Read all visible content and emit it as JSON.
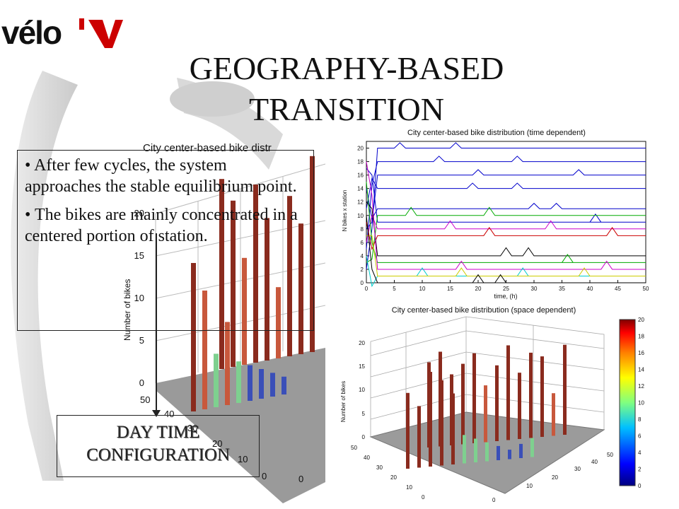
{
  "slide": {
    "title_line1": "GEOGRAPHY-BASED",
    "title_line2": "TRANSITION",
    "logo_text": "vélo'v",
    "bullets": [
      "• After few cycles, the system approaches the stable equilibrium point.",
      "• The bikes are mainly concentrated in a centered portion of station."
    ],
    "day_box_line1": "DAY TIME",
    "day_box_line2": "CONFIGURATION"
  },
  "chart_data": [
    {
      "type": "bar",
      "id": "big-3d",
      "title": "City center-based bike distr",
      "zlabel": "Number of bikes",
      "zticks": [
        "0",
        "5",
        "10",
        "15",
        "20"
      ],
      "xticks": [
        "50",
        "40",
        "30",
        "20",
        "10",
        "0"
      ],
      "yticks": [
        "0"
      ],
      "bar_heights": [
        32,
        28,
        18,
        30,
        24,
        12,
        27,
        22,
        33,
        25,
        20,
        9,
        14,
        7,
        6,
        5,
        4,
        3
      ]
    },
    {
      "type": "line",
      "id": "time-dependent",
      "title": "City center-based bike distribution (time dependent)",
      "xlabel": "time, (h)",
      "ylabel": "N bikes x station",
      "xlim": [
        0,
        50
      ],
      "ylim": [
        0,
        21
      ],
      "xticks": [
        0,
        5,
        10,
        15,
        20,
        25,
        30,
        35,
        40,
        45,
        50
      ],
      "yticks": [
        0,
        2,
        4,
        6,
        8,
        10,
        12,
        14,
        16,
        18,
        20
      ],
      "series": [
        {
          "color": "#0000cc",
          "level": 20
        },
        {
          "color": "#0000cc",
          "level": 18
        },
        {
          "color": "#0000cc",
          "level": 16
        },
        {
          "color": "#0000cc",
          "level": 14
        },
        {
          "color": "#0000cc",
          "level": 11
        },
        {
          "color": "#0000cc",
          "level": 9
        },
        {
          "color": "#00aa00",
          "level": 10
        },
        {
          "color": "#cc00cc",
          "level": 8
        },
        {
          "color": "#cc0000",
          "level": 7
        },
        {
          "color": "#000000",
          "level": 4
        },
        {
          "color": "#00aa00",
          "level": 3
        },
        {
          "color": "#cc00cc",
          "level": 2
        },
        {
          "color": "#00cccc",
          "level": 1
        },
        {
          "color": "#cccc00",
          "level": 1
        },
        {
          "color": "#000000",
          "level": 0
        }
      ]
    },
    {
      "type": "heatmap",
      "id": "space-dependent",
      "title": "City center-based bike distribution (space dependent)",
      "zlabel": "Number of bikes",
      "zticks": [
        "0",
        "5",
        "10",
        "15",
        "20"
      ],
      "xticks": [
        "50",
        "40",
        "30",
        "20",
        "10",
        "0"
      ],
      "yticks": [
        "0",
        "10",
        "20",
        "30",
        "40",
        "50"
      ],
      "colorbar_ticks": [
        "0",
        "2",
        "4",
        "6",
        "8",
        "10",
        "12",
        "14",
        "16",
        "18",
        "20"
      ],
      "colormap": [
        "#800000",
        "#ff0000",
        "#ff8000",
        "#ffff00",
        "#80ff80",
        "#00ffff",
        "#0080ff",
        "#0000ff",
        "#000080"
      ]
    }
  ]
}
